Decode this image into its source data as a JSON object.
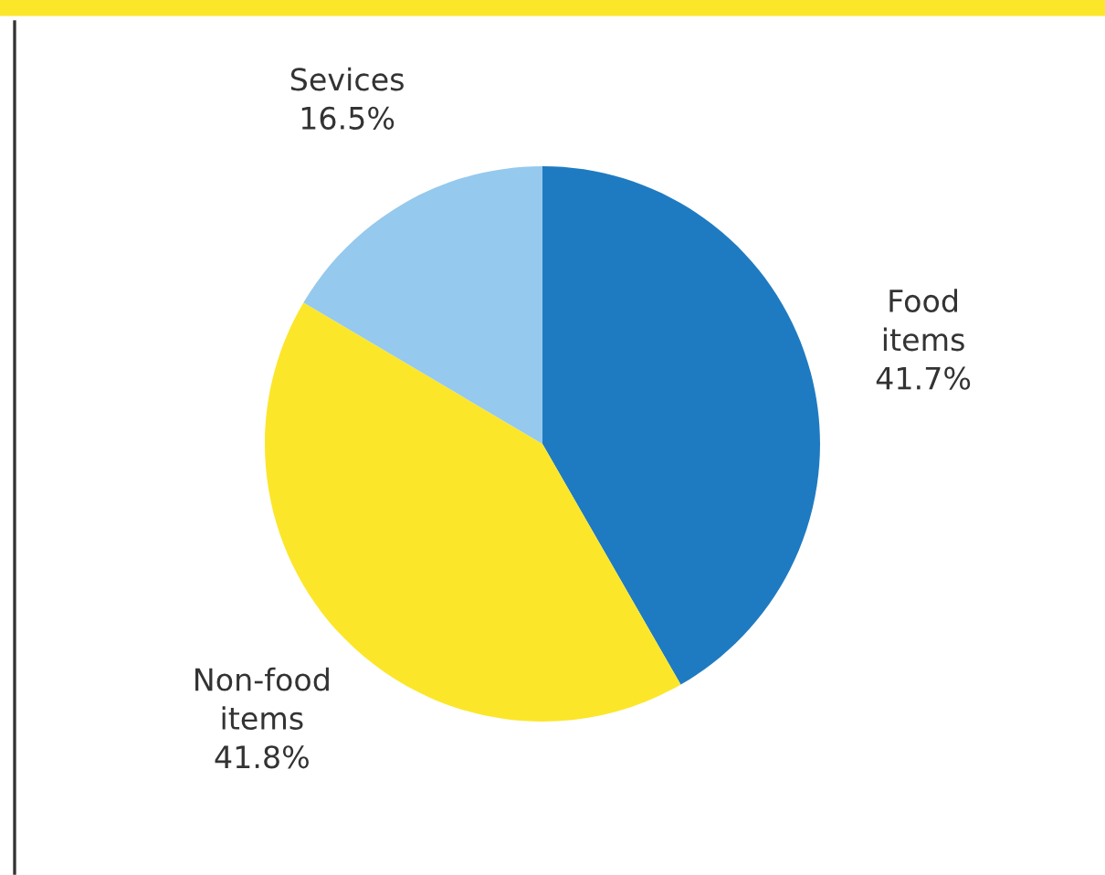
{
  "chart_data": {
    "type": "pie",
    "categories": [
      "Food\nitems",
      "Non-food\nitems",
      "Sevices"
    ],
    "values": [
      41.7,
      41.8,
      16.5
    ],
    "colors": [
      "#1f7bc1",
      "#fce62a",
      "#95c9ee"
    ],
    "value_labels": [
      "41.7%",
      "41.8%",
      "16.5%"
    ]
  }
}
